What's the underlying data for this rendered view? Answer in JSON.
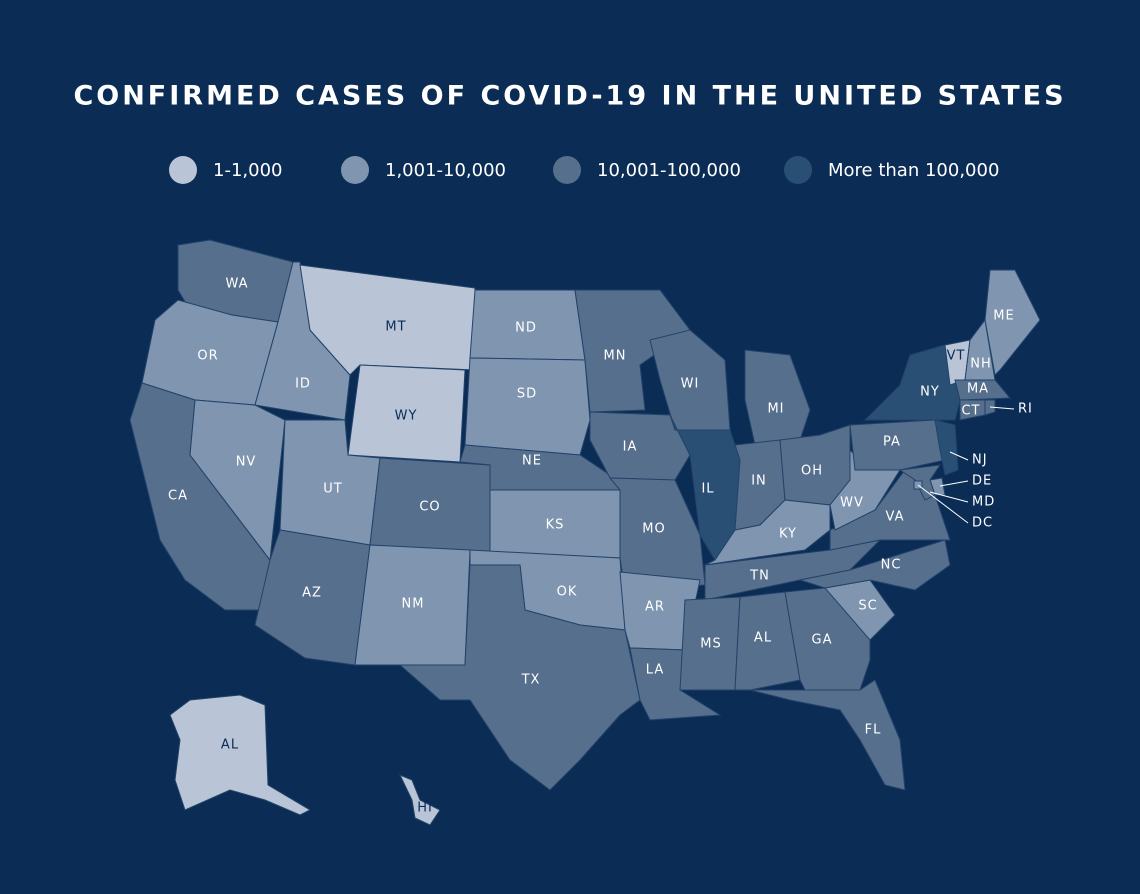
{
  "chart_data": {
    "type": "choropleth",
    "title": "CONFIRMED CASES OF COVID-19 IN THE UNITED STATES",
    "legend": [
      {
        "name": "1-1,000",
        "color": "#b9c5d6"
      },
      {
        "name": "1,001-10,000",
        "color": "#7f95b0"
      },
      {
        "name": "10,001-100,000",
        "color": "#566f8d"
      },
      {
        "name": "More than 100,000",
        "color": "#2a4f74"
      }
    ],
    "states": [
      {
        "label": "WA",
        "color": "#566f8d"
      },
      {
        "label": "OR",
        "color": "#7f95b0"
      },
      {
        "label": "CA",
        "color": "#566f8d"
      },
      {
        "label": "NV",
        "color": "#7f95b0"
      },
      {
        "label": "ID",
        "color": "#7f95b0"
      },
      {
        "label": "MT",
        "color": "#b9c5d6"
      },
      {
        "label": "WY",
        "color": "#b9c5d6"
      },
      {
        "label": "UT",
        "color": "#7f95b0"
      },
      {
        "label": "AZ",
        "color": "#566f8d"
      },
      {
        "label": "CO",
        "color": "#566f8d"
      },
      {
        "label": "NM",
        "color": "#7f95b0"
      },
      {
        "label": "ND",
        "color": "#7f95b0"
      },
      {
        "label": "SD",
        "color": "#7f95b0"
      },
      {
        "label": "NE",
        "color": "#566f8d"
      },
      {
        "label": "KS",
        "color": "#7f95b0"
      },
      {
        "label": "OK",
        "color": "#7f95b0"
      },
      {
        "label": "TX",
        "color": "#566f8d"
      },
      {
        "label": "MN",
        "color": "#566f8d"
      },
      {
        "label": "IA",
        "color": "#566f8d"
      },
      {
        "label": "MO",
        "color": "#566f8d"
      },
      {
        "label": "AR",
        "color": "#7f95b0"
      },
      {
        "label": "LA",
        "color": "#566f8d"
      },
      {
        "label": "WI",
        "color": "#566f8d"
      },
      {
        "label": "IL",
        "color": "#2a4f74"
      },
      {
        "label": "MI",
        "color": "#566f8d"
      },
      {
        "label": "IN",
        "color": "#566f8d"
      },
      {
        "label": "OH",
        "color": "#566f8d"
      },
      {
        "label": "KY",
        "color": "#7f95b0"
      },
      {
        "label": "TN",
        "color": "#566f8d"
      },
      {
        "label": "MS",
        "color": "#566f8d"
      },
      {
        "label": "AL",
        "color": "#566f8d"
      },
      {
        "label": "GA",
        "color": "#566f8d"
      },
      {
        "label": "FL",
        "color": "#566f8d"
      },
      {
        "label": "SC",
        "color": "#7f95b0"
      },
      {
        "label": "NC",
        "color": "#566f8d"
      },
      {
        "label": "VA",
        "color": "#566f8d"
      },
      {
        "label": "WV",
        "color": "#7f95b0"
      },
      {
        "label": "PA",
        "color": "#566f8d"
      },
      {
        "label": "NY",
        "color": "#2a4f74"
      },
      {
        "label": "VT",
        "color": "#b9c5d6"
      },
      {
        "label": "NH",
        "color": "#7f95b0"
      },
      {
        "label": "ME",
        "color": "#7f95b0"
      },
      {
        "label": "MA",
        "color": "#566f8d"
      },
      {
        "label": "CT",
        "color": "#566f8d"
      },
      {
        "label": "RI",
        "color": "#566f8d"
      },
      {
        "label": "NJ",
        "color": "#2a4f74"
      },
      {
        "label": "DE",
        "color": "#7f95b0"
      },
      {
        "label": "MD",
        "color": "#566f8d"
      },
      {
        "label": "DC",
        "color": "#7f95b0"
      },
      {
        "label": "AL",
        "color": "#b9c5d6"
      },
      {
        "label": "HI",
        "color": "#b9c5d6"
      }
    ]
  }
}
